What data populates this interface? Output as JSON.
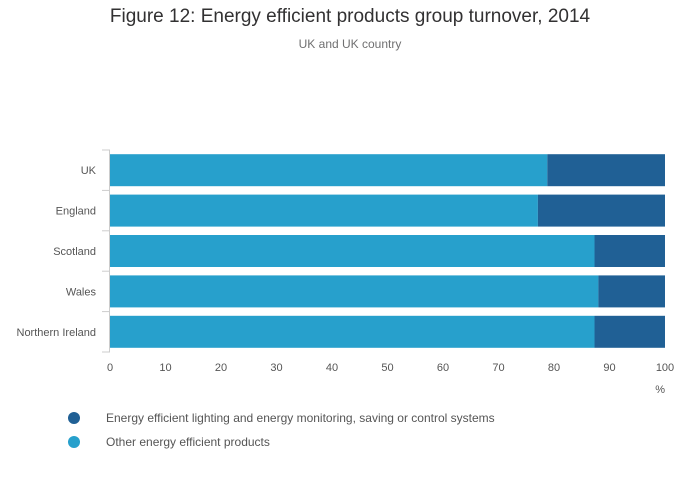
{
  "chart_data": {
    "type": "bar",
    "orientation": "horizontal",
    "stacked": true,
    "title": "Figure 12: Energy efficient products group turnover, 2014",
    "subtitle": "UK and UK country",
    "categories": [
      "UK",
      "England",
      "Scotland",
      "Wales",
      "Northern Ireland"
    ],
    "series": [
      {
        "name": "Other energy efficient products",
        "color": "#27a0cc",
        "values": [
          78.8,
          77.1,
          87.3,
          88.0,
          87.3
        ]
      },
      {
        "name": "Energy efficient lighting and energy monitoring, saving or control systems",
        "color": "#206095",
        "values": [
          21.2,
          22.9,
          12.7,
          12.0,
          12.7
        ]
      }
    ],
    "xlabel": "%",
    "xlim": [
      0,
      100
    ],
    "xticks": [
      0,
      10,
      20,
      30,
      40,
      50,
      60,
      70,
      80,
      90,
      100
    ],
    "grid": false,
    "legend_position": "bottom-left"
  },
  "legend": [
    {
      "label": "Energy efficient lighting and energy monitoring, saving or control systems",
      "color": "#206095"
    },
    {
      "label": "Other energy efficient products",
      "color": "#27a0cc"
    }
  ]
}
